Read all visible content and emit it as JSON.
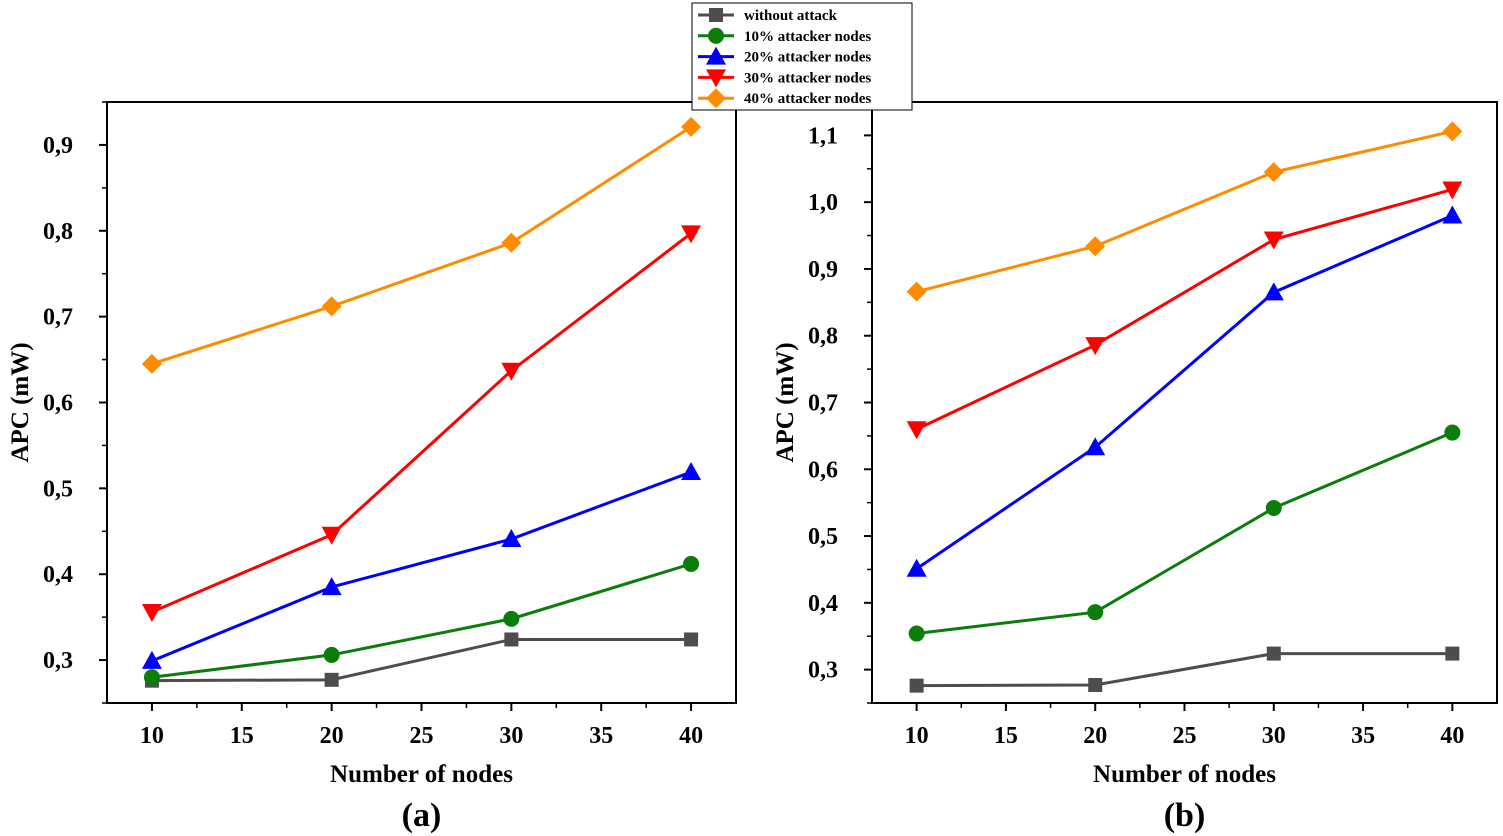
{
  "legend": [
    {
      "name": "without attack",
      "color": "#4d4d4d",
      "marker": "square"
    },
    {
      "name": "10% attacker nodes",
      "color": "#0a7d0a",
      "marker": "circle"
    },
    {
      "name": "20% attacker nodes",
      "color": "#0000ff",
      "marker": "triangle-up"
    },
    {
      "name": "30% attacker nodes",
      "color": "#ff0000",
      "marker": "triangle-down"
    },
    {
      "name": "40% attacker nodes",
      "color": "#ff8c00",
      "marker": "diamond"
    }
  ],
  "chart_data": [
    {
      "type": "line",
      "panel_label": "(a)",
      "xlabel": "Number of nodes",
      "ylabel": "APC (mW)",
      "x": [
        10,
        20,
        30,
        40
      ],
      "xlim": [
        7.5,
        42.5
      ],
      "ylim": [
        0.25,
        0.95
      ],
      "xticks": [
        10,
        15,
        20,
        25,
        30,
        35,
        40
      ],
      "xtick_labels": [
        "10",
        "15",
        "20",
        "25",
        "30",
        "35",
        "40"
      ],
      "yticks": [
        0.3,
        0.4,
        0.5,
        0.6,
        0.7,
        0.8,
        0.9
      ],
      "ytick_labels": [
        "0,3",
        "0,4",
        "0,5",
        "0,6",
        "0,7",
        "0,8",
        "0,9"
      ],
      "series": [
        {
          "name": "without attack",
          "values": [
            0.276,
            0.277,
            0.324,
            0.324
          ]
        },
        {
          "name": "10% attacker nodes",
          "values": [
            0.28,
            0.306,
            0.348,
            0.412
          ]
        },
        {
          "name": "20% attacker nodes",
          "values": [
            0.299,
            0.385,
            0.441,
            0.519
          ]
        },
        {
          "name": "30% attacker nodes",
          "values": [
            0.356,
            0.446,
            0.637,
            0.797
          ]
        },
        {
          "name": "40% attacker nodes",
          "values": [
            0.645,
            0.712,
            0.786,
            0.921
          ]
        }
      ]
    },
    {
      "type": "line",
      "panel_label": "(b)",
      "xlabel": "Number of nodes",
      "ylabel": "APC (mW)",
      "x": [
        10,
        20,
        30,
        40
      ],
      "xlim": [
        7.5,
        42.5
      ],
      "ylim": [
        0.25,
        1.15
      ],
      "xticks": [
        10,
        15,
        20,
        25,
        30,
        35,
        40
      ],
      "xtick_labels": [
        "10",
        "15",
        "20",
        "25",
        "30",
        "35",
        "40"
      ],
      "yticks": [
        0.3,
        0.4,
        0.5,
        0.6,
        0.7,
        0.8,
        0.9,
        1.0,
        1.1
      ],
      "ytick_labels": [
        "0,3",
        "0,4",
        "0,5",
        "0,6",
        "0,7",
        "0,8",
        "0,9",
        "1,0",
        "1,1"
      ],
      "series": [
        {
          "name": "without attack",
          "values": [
            0.276,
            0.277,
            0.324,
            0.324
          ]
        },
        {
          "name": "10% attacker nodes",
          "values": [
            0.354,
            0.386,
            0.542,
            0.655
          ]
        },
        {
          "name": "20% attacker nodes",
          "values": [
            0.451,
            0.633,
            0.865,
            0.98
          ]
        },
        {
          "name": "30% attacker nodes",
          "values": [
            0.66,
            0.786,
            0.944,
            1.019
          ]
        },
        {
          "name": "40% attacker nodes",
          "values": [
            0.866,
            0.934,
            1.045,
            1.106
          ]
        }
      ]
    }
  ]
}
